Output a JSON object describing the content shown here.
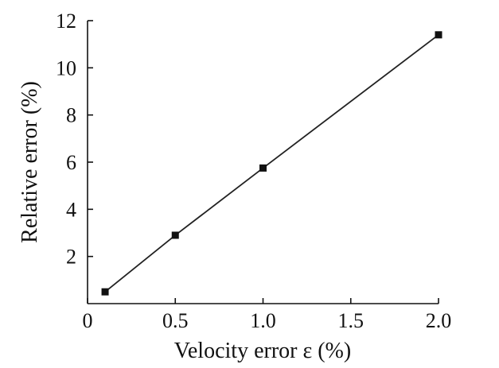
{
  "chart_data": {
    "type": "line",
    "xlabel": "Velocity error ε (%)",
    "ylabel": "Relative error (%)",
    "xlim": [
      0,
      2.0
    ],
    "ylim": [
      0,
      12
    ],
    "x_ticks": [
      0,
      0.5,
      1.0,
      1.5,
      2.0
    ],
    "x_tick_labels": [
      "0",
      "0.5",
      "1.0",
      "1.5",
      "2.0"
    ],
    "y_ticks": [
      2,
      4,
      6,
      8,
      10,
      12
    ],
    "y_tick_labels": [
      "2",
      "4",
      "6",
      "8",
      "10",
      "12"
    ],
    "grid": false,
    "marker": "square",
    "series": [
      {
        "x": [
          0.1,
          0.5,
          1.0,
          2.0
        ],
        "y": [
          0.5,
          2.9,
          5.75,
          11.4
        ]
      }
    ]
  }
}
